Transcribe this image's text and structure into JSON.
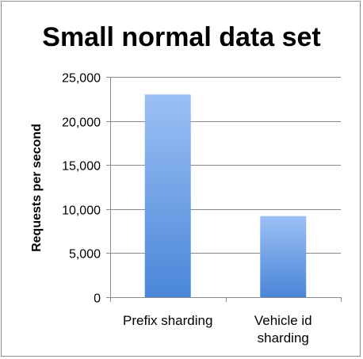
{
  "chart_data": {
    "type": "bar",
    "title": "Small normal data set",
    "xlabel": "",
    "ylabel": "Requests per second",
    "categories": [
      [
        "Prefix sharding"
      ],
      [
        "Vehicle id",
        "sharding"
      ]
    ],
    "values": [
      23000,
      9200
    ],
    "ylim": [
      0,
      25000
    ],
    "yticks": [
      0,
      5000,
      10000,
      15000,
      20000,
      25000
    ],
    "ytick_labels": [
      "0",
      "5,000",
      "10,000",
      "15,000",
      "20,000",
      "25,000"
    ],
    "grid": true,
    "legend": "none",
    "colors": {
      "bar_top": "#9cc0f5",
      "bar_bottom": "#4a86d8",
      "gridline": "#8a8a8a",
      "axis": "#8a8a8a",
      "frame": "#8c8c8c"
    }
  }
}
